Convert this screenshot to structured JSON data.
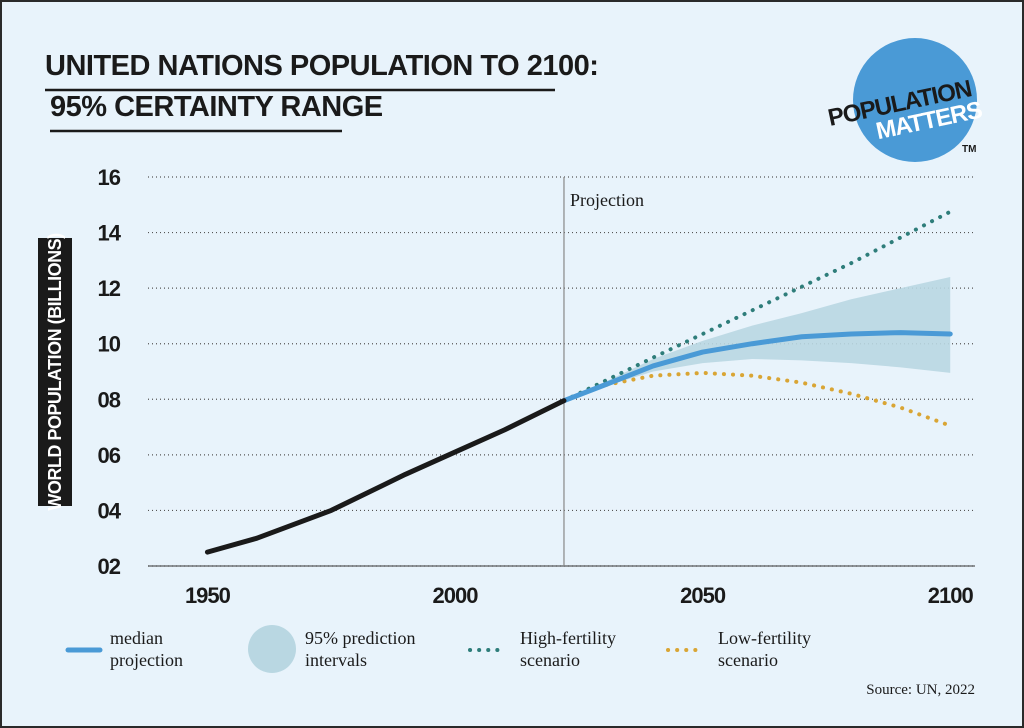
{
  "chart_data": {
    "type": "line",
    "title": [
      "UNITED NATIONS POPULATION TO 2100:",
      "95% CERTAINTY RANGE"
    ],
    "logo": {
      "top": "POPULATION",
      "bottom": "MATTERS",
      "mark": "TM"
    },
    "y_label": "WORLD POPULATION (BILLIONS)",
    "annotation": {
      "text": "Projection",
      "x": 2022
    },
    "source": "Source: UN, 2022",
    "xlim": [
      1938,
      2105
    ],
    "xticks": [
      1950,
      2000,
      2050,
      2100
    ],
    "ylim": [
      2,
      16
    ],
    "yticks": [
      {
        "value": 2,
        "label": "02"
      },
      {
        "value": 4,
        "label": "04"
      },
      {
        "value": 6,
        "label": "06"
      },
      {
        "value": 8,
        "label": "08"
      },
      10,
      12,
      14,
      16
    ],
    "grid": true,
    "series": [
      {
        "color": "#1a1a1a",
        "style": "solid",
        "x": [
          1950,
          1960,
          1975,
          1990,
          2000,
          2010,
          2022
        ],
        "values": [
          2.5,
          3.0,
          4.0,
          5.3,
          6.1,
          6.9,
          7.95
        ]
      },
      {
        "name": "median projection",
        "color": "#4a9ad6",
        "style": "solid",
        "x": [
          2022,
          2030,
          2040,
          2050,
          2060,
          2070,
          2080,
          2090,
          2100
        ],
        "values": [
          7.95,
          8.5,
          9.2,
          9.7,
          10.0,
          10.25,
          10.35,
          10.4,
          10.35
        ]
      },
      {
        "name": "High-fertility scenario",
        "color": "#2e7d7a",
        "style": "dotted",
        "x": [
          2022,
          2040,
          2060,
          2080,
          2100
        ],
        "values": [
          7.95,
          9.5,
          11.2,
          12.9,
          14.75
        ]
      },
      {
        "name": "Low-fertility scenario",
        "color": "#d9a534",
        "style": "dotted",
        "x": [
          2022,
          2030,
          2040,
          2050,
          2060,
          2070,
          2080,
          2090,
          2100
        ],
        "values": [
          7.95,
          8.5,
          8.85,
          8.95,
          8.85,
          8.6,
          8.2,
          7.7,
          7.05
        ]
      }
    ],
    "band": {
      "name": "95% prediction intervals",
      "color": "#b9d7e2",
      "x": [
        2022,
        2030,
        2040,
        2050,
        2060,
        2070,
        2080,
        2090,
        2100
      ],
      "upper": [
        7.95,
        8.6,
        9.45,
        10.1,
        10.65,
        11.1,
        11.6,
        12.0,
        12.4
      ],
      "lower": [
        7.95,
        8.45,
        9.0,
        9.3,
        9.45,
        9.4,
        9.3,
        9.15,
        8.95
      ]
    }
  }
}
